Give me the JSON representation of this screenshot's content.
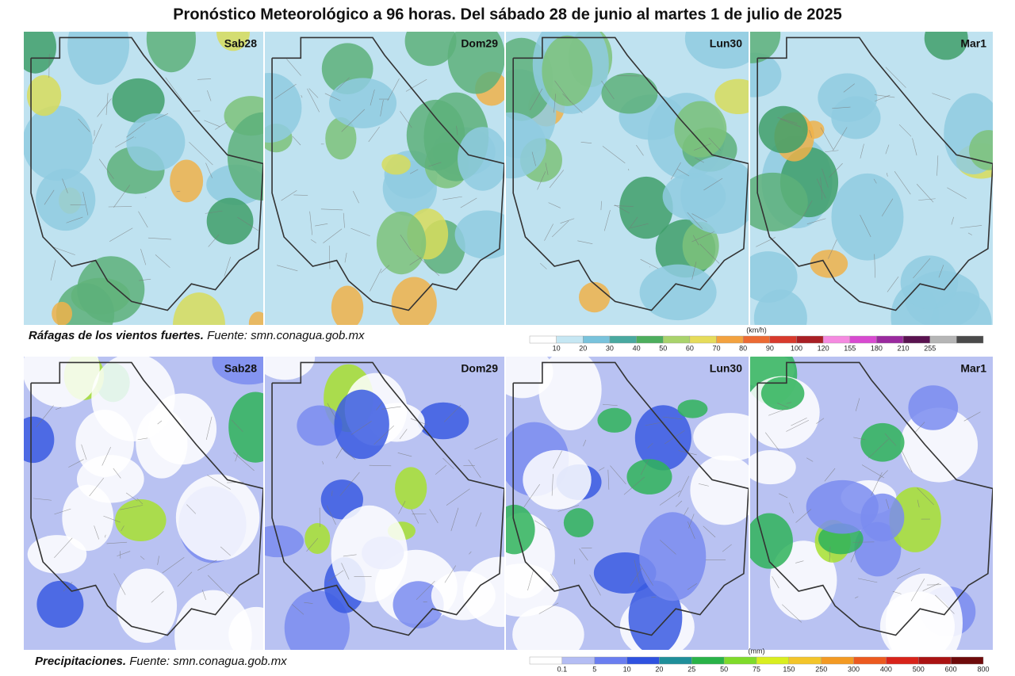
{
  "header": {
    "title": "Pronóstico Meteorológico a 96 horas. Del sábado 28 de junio al martes 1 de julio de 2025"
  },
  "wind": {
    "panels": [
      "Sab28",
      "Dom29",
      "Lun30",
      "Mar1"
    ],
    "caption": {
      "title": "Ráfagas de los vientos fuertes.",
      "source": "Fuente: smn.conagua.gob.mx"
    },
    "legend": {
      "unit": "(km/h)",
      "labels": [
        10,
        20,
        30,
        40,
        50,
        60,
        70,
        80,
        90,
        100,
        120,
        155,
        180,
        210,
        255
      ],
      "colors": [
        "#ffffff",
        "#c6e7f3",
        "#79c3dc",
        "#49a9a0",
        "#4dae5d",
        "#a9d36b",
        "#e6dc5a",
        "#f3a23f",
        "#ec6a33",
        "#d83a2c",
        "#a91f24",
        "#f58ae0",
        "#d84ad0",
        "#9a2a9e",
        "#5a1350",
        "#b5b5b5",
        "#4a4a4a"
      ]
    }
  },
  "precip": {
    "panels": [
      "Sab28",
      "Dom29",
      "Lun30",
      "Mar1"
    ],
    "caption": {
      "title": "Precipitaciones.",
      "source": "Fuente: smn.conagua.gob.mx"
    },
    "legend": {
      "unit": "(mm)",
      "labels": [
        0.1,
        5,
        10,
        20,
        25,
        50,
        75,
        150,
        250,
        300,
        400,
        500,
        600,
        800
      ],
      "colors": [
        "#ffffff",
        "#b4bdf3",
        "#6a7ef0",
        "#2f52e0",
        "#1f8f9a",
        "#29b348",
        "#7fdb2a",
        "#d9ee1f",
        "#f3c52a",
        "#f39a23",
        "#ec5a1f",
        "#d8231a",
        "#aa1212",
        "#6e0a0a"
      ]
    }
  }
}
